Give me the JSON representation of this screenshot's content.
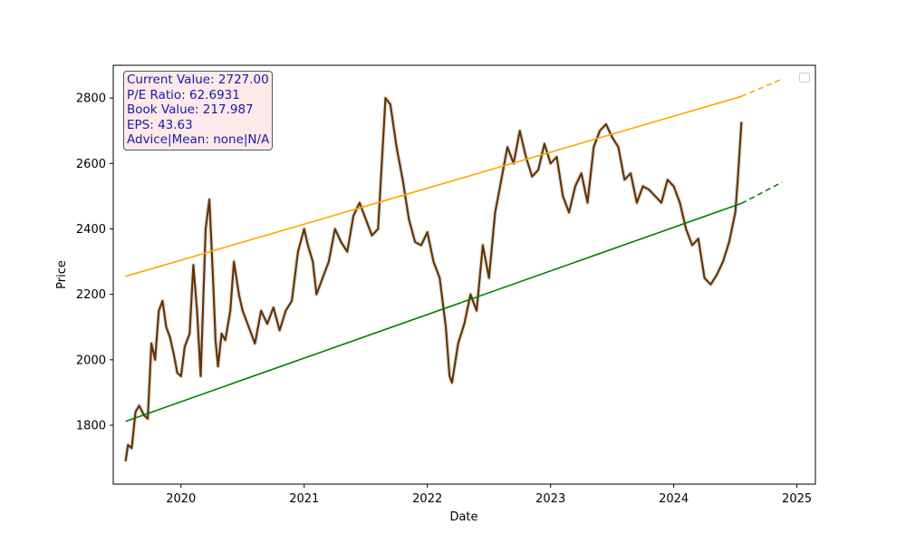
{
  "info_box": {
    "current_value": "Current Value: 2727.00",
    "pe_ratio": "P/E Ratio: 62.6931",
    "book_value": "Book Value: 217.987",
    "eps": "EPS: 43.63",
    "advice": "Advice|Mean: none|N/A"
  },
  "colors": {
    "price": "#663300",
    "upper_trend": "#ffa500",
    "lower_trend": "#008000",
    "range_band": "#d3d3d3",
    "info_text": "#1a1aa6",
    "info_bg": "#fde9e9"
  },
  "chart_data": {
    "type": "line",
    "xlabel": "Date",
    "ylabel": "Price",
    "xlim": [
      2019.45,
      2025.15
    ],
    "ylim": [
      1620,
      2900
    ],
    "x_ticks": [
      2020,
      2021,
      2022,
      2023,
      2024,
      2025
    ],
    "x_tick_labels": [
      "2020",
      "2021",
      "2022",
      "2023",
      "2024",
      "2025"
    ],
    "y_ticks": [
      1800,
      2000,
      2200,
      2400,
      2600,
      2800
    ],
    "y_tick_labels": [
      "1800",
      "2000",
      "2200",
      "2400",
      "2600",
      "2800"
    ],
    "grid": false,
    "legend": "top-right (empty)",
    "series": [
      {
        "style": "price",
        "x": [
          2019.55,
          2019.57,
          2019.6,
          2019.63,
          2019.66,
          2019.7,
          2019.73,
          2019.76,
          2019.79,
          2019.82,
          2019.85,
          2019.88,
          2019.91,
          2019.94,
          2019.97,
          2020.0,
          2020.03,
          2020.07,
          2020.1,
          2020.13,
          2020.16,
          2020.2,
          2020.23,
          2020.26,
          2020.28,
          2020.3,
          2020.33,
          2020.36,
          2020.4,
          2020.43,
          2020.47,
          2020.5,
          2020.55,
          2020.6,
          2020.65,
          2020.7,
          2020.75,
          2020.8,
          2020.85,
          2020.9,
          2020.95,
          2021.0,
          2021.03,
          2021.07,
          2021.1,
          2021.15,
          2021.2,
          2021.25,
          2021.3,
          2021.35,
          2021.4,
          2021.45,
          2021.5,
          2021.55,
          2021.6,
          2021.63,
          2021.66,
          2021.7,
          2021.75,
          2021.8,
          2021.85,
          2021.9,
          2021.95,
          2022.0,
          2022.05,
          2022.1,
          2022.15,
          2022.18,
          2022.2,
          2022.25,
          2022.3,
          2022.35,
          2022.4,
          2022.45,
          2022.5,
          2022.55,
          2022.6,
          2022.65,
          2022.7,
          2022.75,
          2022.8,
          2022.85,
          2022.9,
          2022.95,
          2023.0,
          2023.05,
          2023.1,
          2023.15,
          2023.2,
          2023.25,
          2023.3,
          2023.35,
          2023.4,
          2023.45,
          2023.5,
          2023.55,
          2023.6,
          2023.65,
          2023.7,
          2023.75,
          2023.8,
          2023.85,
          2023.9,
          2023.95,
          2024.0,
          2024.05,
          2024.1,
          2024.15,
          2024.2,
          2024.25,
          2024.3,
          2024.35,
          2024.4,
          2024.45,
          2024.5,
          2024.52,
          2024.55
        ],
        "values": [
          1690,
          1740,
          1730,
          1840,
          1860,
          1830,
          1820,
          2050,
          2000,
          2150,
          2180,
          2100,
          2070,
          2020,
          1960,
          1950,
          2040,
          2080,
          2290,
          2150,
          1950,
          2400,
          2490,
          2250,
          2060,
          1980,
          2080,
          2060,
          2150,
          2300,
          2200,
          2150,
          2100,
          2050,
          2150,
          2110,
          2160,
          2090,
          2150,
          2180,
          2330,
          2400,
          2350,
          2300,
          2200,
          2250,
          2300,
          2400,
          2360,
          2330,
          2440,
          2480,
          2430,
          2380,
          2400,
          2600,
          2800,
          2780,
          2650,
          2550,
          2430,
          2360,
          2350,
          2390,
          2300,
          2250,
          2100,
          1950,
          1930,
          2050,
          2110,
          2200,
          2150,
          2350,
          2250,
          2450,
          2550,
          2650,
          2600,
          2700,
          2620,
          2560,
          2580,
          2660,
          2600,
          2620,
          2500,
          2450,
          2530,
          2570,
          2480,
          2650,
          2700,
          2720,
          2680,
          2650,
          2550,
          2570,
          2480,
          2530,
          2520,
          2500,
          2480,
          2550,
          2530,
          2480,
          2400,
          2350,
          2370,
          2250,
          2230,
          2260,
          2300,
          2360,
          2450,
          2550,
          2727
        ]
      },
      {
        "style": "upper_trend",
        "x": [
          2019.55,
          2024.55
        ],
        "values": [
          2255,
          2805
        ]
      },
      {
        "style": "upper_trend_projection",
        "x": [
          2024.55,
          2024.88
        ],
        "values": [
          2805,
          2858
        ]
      },
      {
        "style": "lower_trend",
        "x": [
          2019.55,
          2024.55
        ],
        "values": [
          1812,
          2478
        ]
      },
      {
        "style": "lower_trend_projection",
        "x": [
          2024.55,
          2024.88
        ],
        "values": [
          2478,
          2543
        ]
      }
    ]
  }
}
